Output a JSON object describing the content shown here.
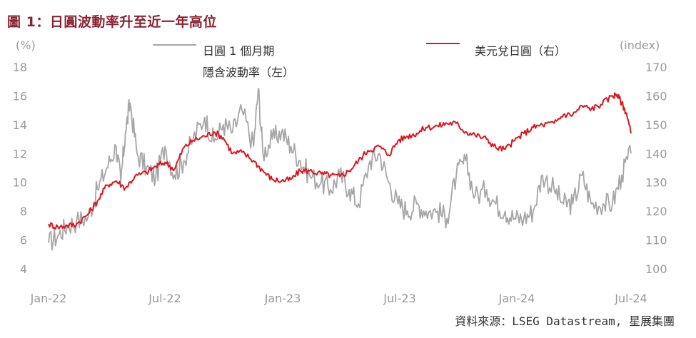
{
  "title": "圖 1：日圓波動率升至近一年高位",
  "source": "資料來源：LSEG Datastream, 星展集團",
  "chart_data": {
    "type": "line",
    "left_axis": {
      "unit_label": "(%)",
      "ticks": [
        "4",
        "6",
        "8",
        "10",
        "12",
        "14",
        "16",
        "18"
      ],
      "ylim": [
        4,
        18
      ]
    },
    "right_axis": {
      "unit_label": "(index)",
      "ticks": [
        "100",
        "110",
        "120",
        "130",
        "140",
        "150",
        "160",
        "170"
      ],
      "ylim": [
        100,
        170
      ]
    },
    "x_ticks": [
      "Jan-22",
      "Jul-22",
      "Jan-23",
      "Jul-23",
      "Jan-24",
      "Jul-24"
    ],
    "grid": false,
    "legend_position": "top",
    "series": [
      {
        "name_lines": [
          "日圓 1 個月期",
          "隱含波動率（左）"
        ],
        "axis": "left",
        "color": "#a6a6a6",
        "x": [
          2022.0,
          2022.04,
          2022.08,
          2022.12,
          2022.17,
          2022.21,
          2022.25,
          2022.29,
          2022.31,
          2022.33,
          2022.35,
          2022.38,
          2022.42,
          2022.46,
          2022.5,
          2022.54,
          2022.58,
          2022.62,
          2022.67,
          2022.71,
          2022.75,
          2022.79,
          2022.83,
          2022.88,
          2022.9,
          2022.92,
          2022.96,
          2023.0,
          2023.04,
          2023.08,
          2023.12,
          2023.17,
          2023.21,
          2023.25,
          2023.29,
          2023.33,
          2023.38,
          2023.42,
          2023.46,
          2023.5,
          2023.54,
          2023.58,
          2023.62,
          2023.67,
          2023.71,
          2023.75,
          2023.79,
          2023.83,
          2023.88,
          2023.92,
          2023.96,
          2024.0,
          2024.04,
          2024.08,
          2024.12,
          2024.17,
          2024.21,
          2024.25,
          2024.29,
          2024.33,
          2024.38,
          2024.42,
          2024.46,
          2024.5
        ],
        "values": [
          5.8,
          6.3,
          7.0,
          7.3,
          7.6,
          9.5,
          11.0,
          12.5,
          10.0,
          13.5,
          15.5,
          12.0,
          11.0,
          10.3,
          12.5,
          10.5,
          11.5,
          13.0,
          14.5,
          12.8,
          14.0,
          13.5,
          15.0,
          12.5,
          16.5,
          12.0,
          13.0,
          13.5,
          12.5,
          11.5,
          10.5,
          10.0,
          9.5,
          10.5,
          9.5,
          8.5,
          11.5,
          12.0,
          10.0,
          8.5,
          8.0,
          8.5,
          8.0,
          8.0,
          7.5,
          10.5,
          11.5,
          9.0,
          9.5,
          8.5,
          8.0,
          7.5,
          7.5,
          8.0,
          10.5,
          9.5,
          8.5,
          8.5,
          10.5,
          8.5,
          8.5,
          8.5,
          10.5,
          12.0
        ]
      },
      {
        "name_lines": [
          "美元兌日圓（右）"
        ],
        "axis": "right",
        "color": "#e0141e",
        "x": [
          2022.0,
          2022.04,
          2022.08,
          2022.12,
          2022.17,
          2022.21,
          2022.25,
          2022.29,
          2022.33,
          2022.37,
          2022.42,
          2022.46,
          2022.5,
          2022.54,
          2022.58,
          2022.62,
          2022.67,
          2022.71,
          2022.75,
          2022.79,
          2022.83,
          2022.88,
          2022.92,
          2022.96,
          2023.0,
          2023.04,
          2023.08,
          2023.12,
          2023.17,
          2023.21,
          2023.25,
          2023.29,
          2023.33,
          2023.37,
          2023.42,
          2023.46,
          2023.5,
          2023.54,
          2023.58,
          2023.62,
          2023.67,
          2023.71,
          2023.75,
          2023.79,
          2023.83,
          2023.88,
          2023.92,
          2023.96,
          2024.0,
          2024.04,
          2024.08,
          2024.12,
          2024.17,
          2024.21,
          2024.25,
          2024.29,
          2024.33,
          2024.37,
          2024.42,
          2024.44,
          2024.46,
          2024.48,
          2024.5
        ],
        "values": [
          115.5,
          114.5,
          115.0,
          115.5,
          119.0,
          123.5,
          129.0,
          130.5,
          128.0,
          132.0,
          133.5,
          135.5,
          137.0,
          134.5,
          142.0,
          144.5,
          146.0,
          147.5,
          145.5,
          140.0,
          140.5,
          137.5,
          134.0,
          131.0,
          130.5,
          131.0,
          134.0,
          134.0,
          133.0,
          132.5,
          132.0,
          134.0,
          137.5,
          141.0,
          142.5,
          139.5,
          144.5,
          146.0,
          147.0,
          149.0,
          149.5,
          150.5,
          150.5,
          147.5,
          146.5,
          145.0,
          142.0,
          141.5,
          144.5,
          147.0,
          149.0,
          150.0,
          150.5,
          153.5,
          153.5,
          156.5,
          155.5,
          157.0,
          160.0,
          160.5,
          157.5,
          154.0,
          147.0
        ]
      }
    ]
  }
}
